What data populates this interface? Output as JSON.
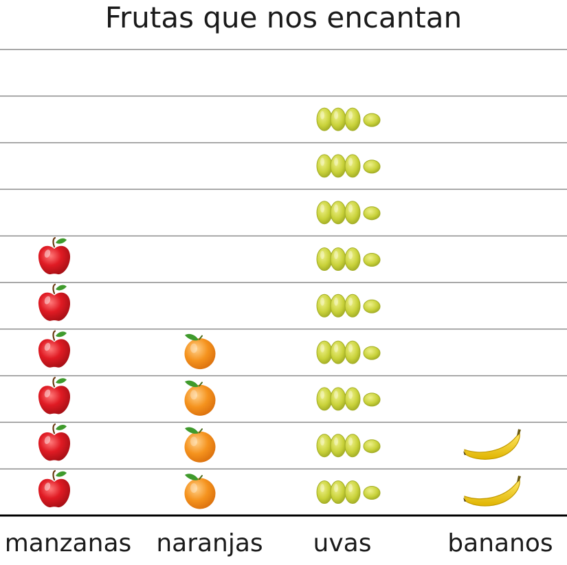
{
  "chart_data": {
    "type": "bar",
    "title": "Frutas que nos encantan",
    "categories": [
      "manzanas",
      "naranjas",
      "uvas",
      "bananos"
    ],
    "values": [
      6,
      4,
      9,
      2
    ],
    "icons": [
      "apple-icon",
      "orange-icon",
      "grapes-icon",
      "banana-icon"
    ],
    "ylim": [
      0,
      10
    ],
    "grid": true
  },
  "colors": {
    "apple": "#e01b24",
    "orange": "#f5931e",
    "grapes": "#c9d23a",
    "banana": "#f7d31a",
    "gridline": "#8c8c8c",
    "baseline": "#000000",
    "text": "#1a1a1a"
  }
}
